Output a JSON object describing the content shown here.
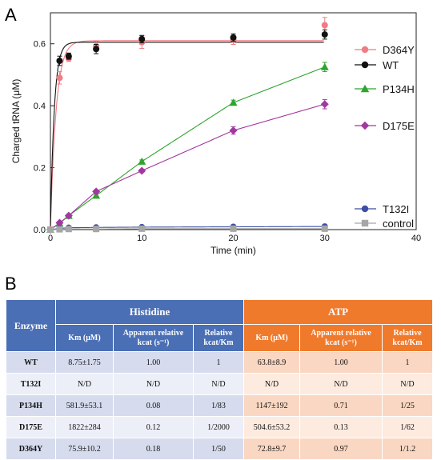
{
  "panel_a_label": "A",
  "panel_b_label": "B",
  "chart_data": {
    "type": "line",
    "xlabel": "Time (min)",
    "ylabel": "Charged tRNA (μM)",
    "xlim": [
      0,
      40
    ],
    "ylim": [
      0,
      0.7
    ],
    "x_ticks": [
      "0",
      "10",
      "20",
      "30",
      "40"
    ],
    "y_ticks": [
      "0.0",
      "0.2",
      "0.4",
      "0.6"
    ],
    "grid": false,
    "legend_position": "right",
    "x": [
      0,
      1,
      2,
      5,
      10,
      20,
      30
    ],
    "series": [
      {
        "name": "D364Y",
        "color": "#f07c84",
        "marker": "circle",
        "values": [
          0,
          0.49,
          0.553,
          0.592,
          0.605,
          0.613,
          0.66
        ],
        "errors": [
          0,
          0.02,
          0.01,
          0.015,
          0.02,
          0.015,
          0.025
        ]
      },
      {
        "name": "WT",
        "color": "#111111",
        "marker": "circle",
        "values": [
          0,
          0.545,
          0.56,
          0.583,
          0.615,
          0.62,
          0.63
        ],
        "errors": [
          0,
          0.015,
          0.01,
          0.015,
          0.012,
          0.012,
          0.015
        ]
      },
      {
        "name": "P134H",
        "color": "#2ea52e",
        "marker": "triangle",
        "values": [
          0,
          0.02,
          0.045,
          0.11,
          0.22,
          0.41,
          0.525
        ],
        "errors": [
          0,
          0.005,
          0.005,
          0.005,
          0.005,
          0.008,
          0.015
        ]
      },
      {
        "name": "D175E",
        "color": "#a0399f",
        "marker": "diamond",
        "values": [
          0,
          0.022,
          0.045,
          0.123,
          0.19,
          0.32,
          0.405
        ],
        "errors": [
          0,
          0.005,
          0.005,
          0.005,
          0.005,
          0.012,
          0.015
        ]
      },
      {
        "name": "T132I",
        "color": "#3c4fa3",
        "marker": "circle",
        "values": [
          0,
          0.004,
          0.006,
          0.007,
          0.008,
          0.009,
          0.01
        ],
        "errors": [
          0,
          0.002,
          0.002,
          0.002,
          0.002,
          0.002,
          0.002
        ]
      },
      {
        "name": "control",
        "color": "#a6a6a6",
        "marker": "square",
        "values": [
          0,
          0.001,
          0.002,
          0.002,
          0.003,
          0.003,
          0.003
        ],
        "errors": [
          0,
          0,
          0,
          0,
          0,
          0,
          0
        ]
      }
    ]
  },
  "table": {
    "enzyme_header": "Enzyme",
    "group_histidine": "Histidine",
    "group_atp": "ATP",
    "col_km": "Km (μM)",
    "col_kcat_a": "Apparent relative",
    "col_kcat_b": "kcat (s⁻¹)",
    "col_ratio_a": "Relative",
    "col_ratio_b": "kcat/Km",
    "rows": [
      {
        "enzyme": "WT",
        "his_km": "8.75±1.75",
        "his_kcat": "1.00",
        "his_ratio": "1",
        "atp_km": "63.8±8.9",
        "atp_kcat": "1.00",
        "atp_ratio": "1"
      },
      {
        "enzyme": "T132I",
        "his_km": "N/D",
        "his_kcat": "N/D",
        "his_ratio": "N/D",
        "atp_km": "N/D",
        "atp_kcat": "N/D",
        "atp_ratio": "N/D"
      },
      {
        "enzyme": "P134H",
        "his_km": "581.9±53.1",
        "his_kcat": "0.08",
        "his_ratio": "1/83",
        "atp_km": "1147±192",
        "atp_kcat": "0.71",
        "atp_ratio": "1/25"
      },
      {
        "enzyme": "D175E",
        "his_km": "1822±284",
        "his_kcat": "0.12",
        "his_ratio": "1/2000",
        "atp_km": "504.6±53.2",
        "atp_kcat": "0.13",
        "atp_ratio": "1/62"
      },
      {
        "enzyme": "D364Y",
        "his_km": "75.9±10.2",
        "his_kcat": "0.18",
        "his_ratio": "1/50",
        "atp_km": "72.8±9.7",
        "atp_kcat": "0.97",
        "atp_ratio": "1/1.2"
      }
    ]
  }
}
